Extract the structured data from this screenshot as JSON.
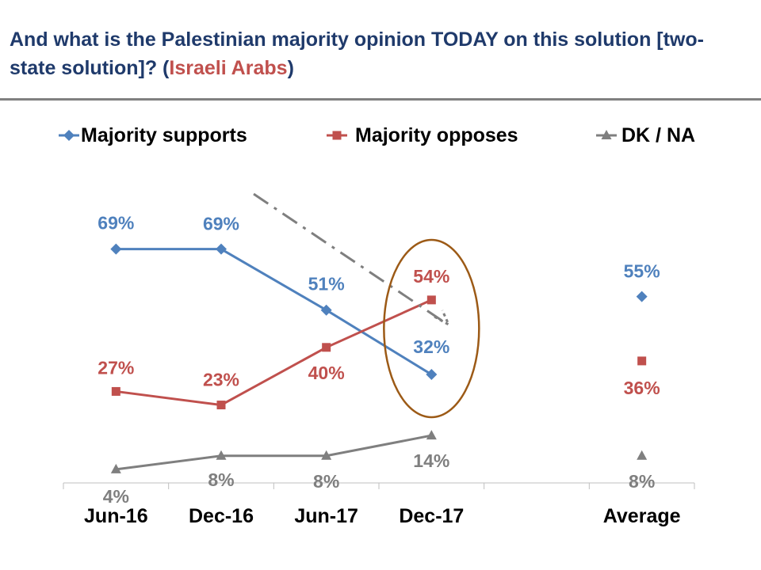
{
  "title": {
    "prefix": "And what is the Palestinian majority opinion TODAY on this solution [two-state solution]? (",
    "highlight": "Israeli Arabs",
    "suffix": ")"
  },
  "colors": {
    "title": "#1f3a6b",
    "highlight": "#c0504d",
    "supports": "#4f81bd",
    "opposes": "#c0504d",
    "dk": "#7f7f7f",
    "circle": "#9c5a16"
  },
  "chart_data": {
    "type": "line",
    "categories": [
      "Jun-16",
      "Dec-16",
      "Jun-17",
      "Dec-17",
      "",
      "Average"
    ],
    "ylim": [
      0,
      100
    ],
    "xlabel": "",
    "ylabel": "",
    "legend_position": "top",
    "series": [
      {
        "name": "Majority supports",
        "values": [
          69,
          69,
          51,
          32,
          null,
          55
        ],
        "labels": [
          "69%",
          "69%",
          "51%",
          "32%",
          "",
          "55%"
        ]
      },
      {
        "name": "Majority opposes",
        "values": [
          27,
          23,
          40,
          54,
          null,
          36
        ],
        "labels": [
          "27%",
          "23%",
          "40%",
          "54%",
          "",
          "36%"
        ]
      },
      {
        "name": "DK / NA",
        "values": [
          4,
          8,
          8,
          14,
          null,
          8
        ],
        "labels": [
          "4%",
          "8%",
          "8%",
          "14%",
          "",
          "8%"
        ]
      }
    ],
    "annotations": [
      "downward trend arrow",
      "circle around Dec-17"
    ]
  }
}
